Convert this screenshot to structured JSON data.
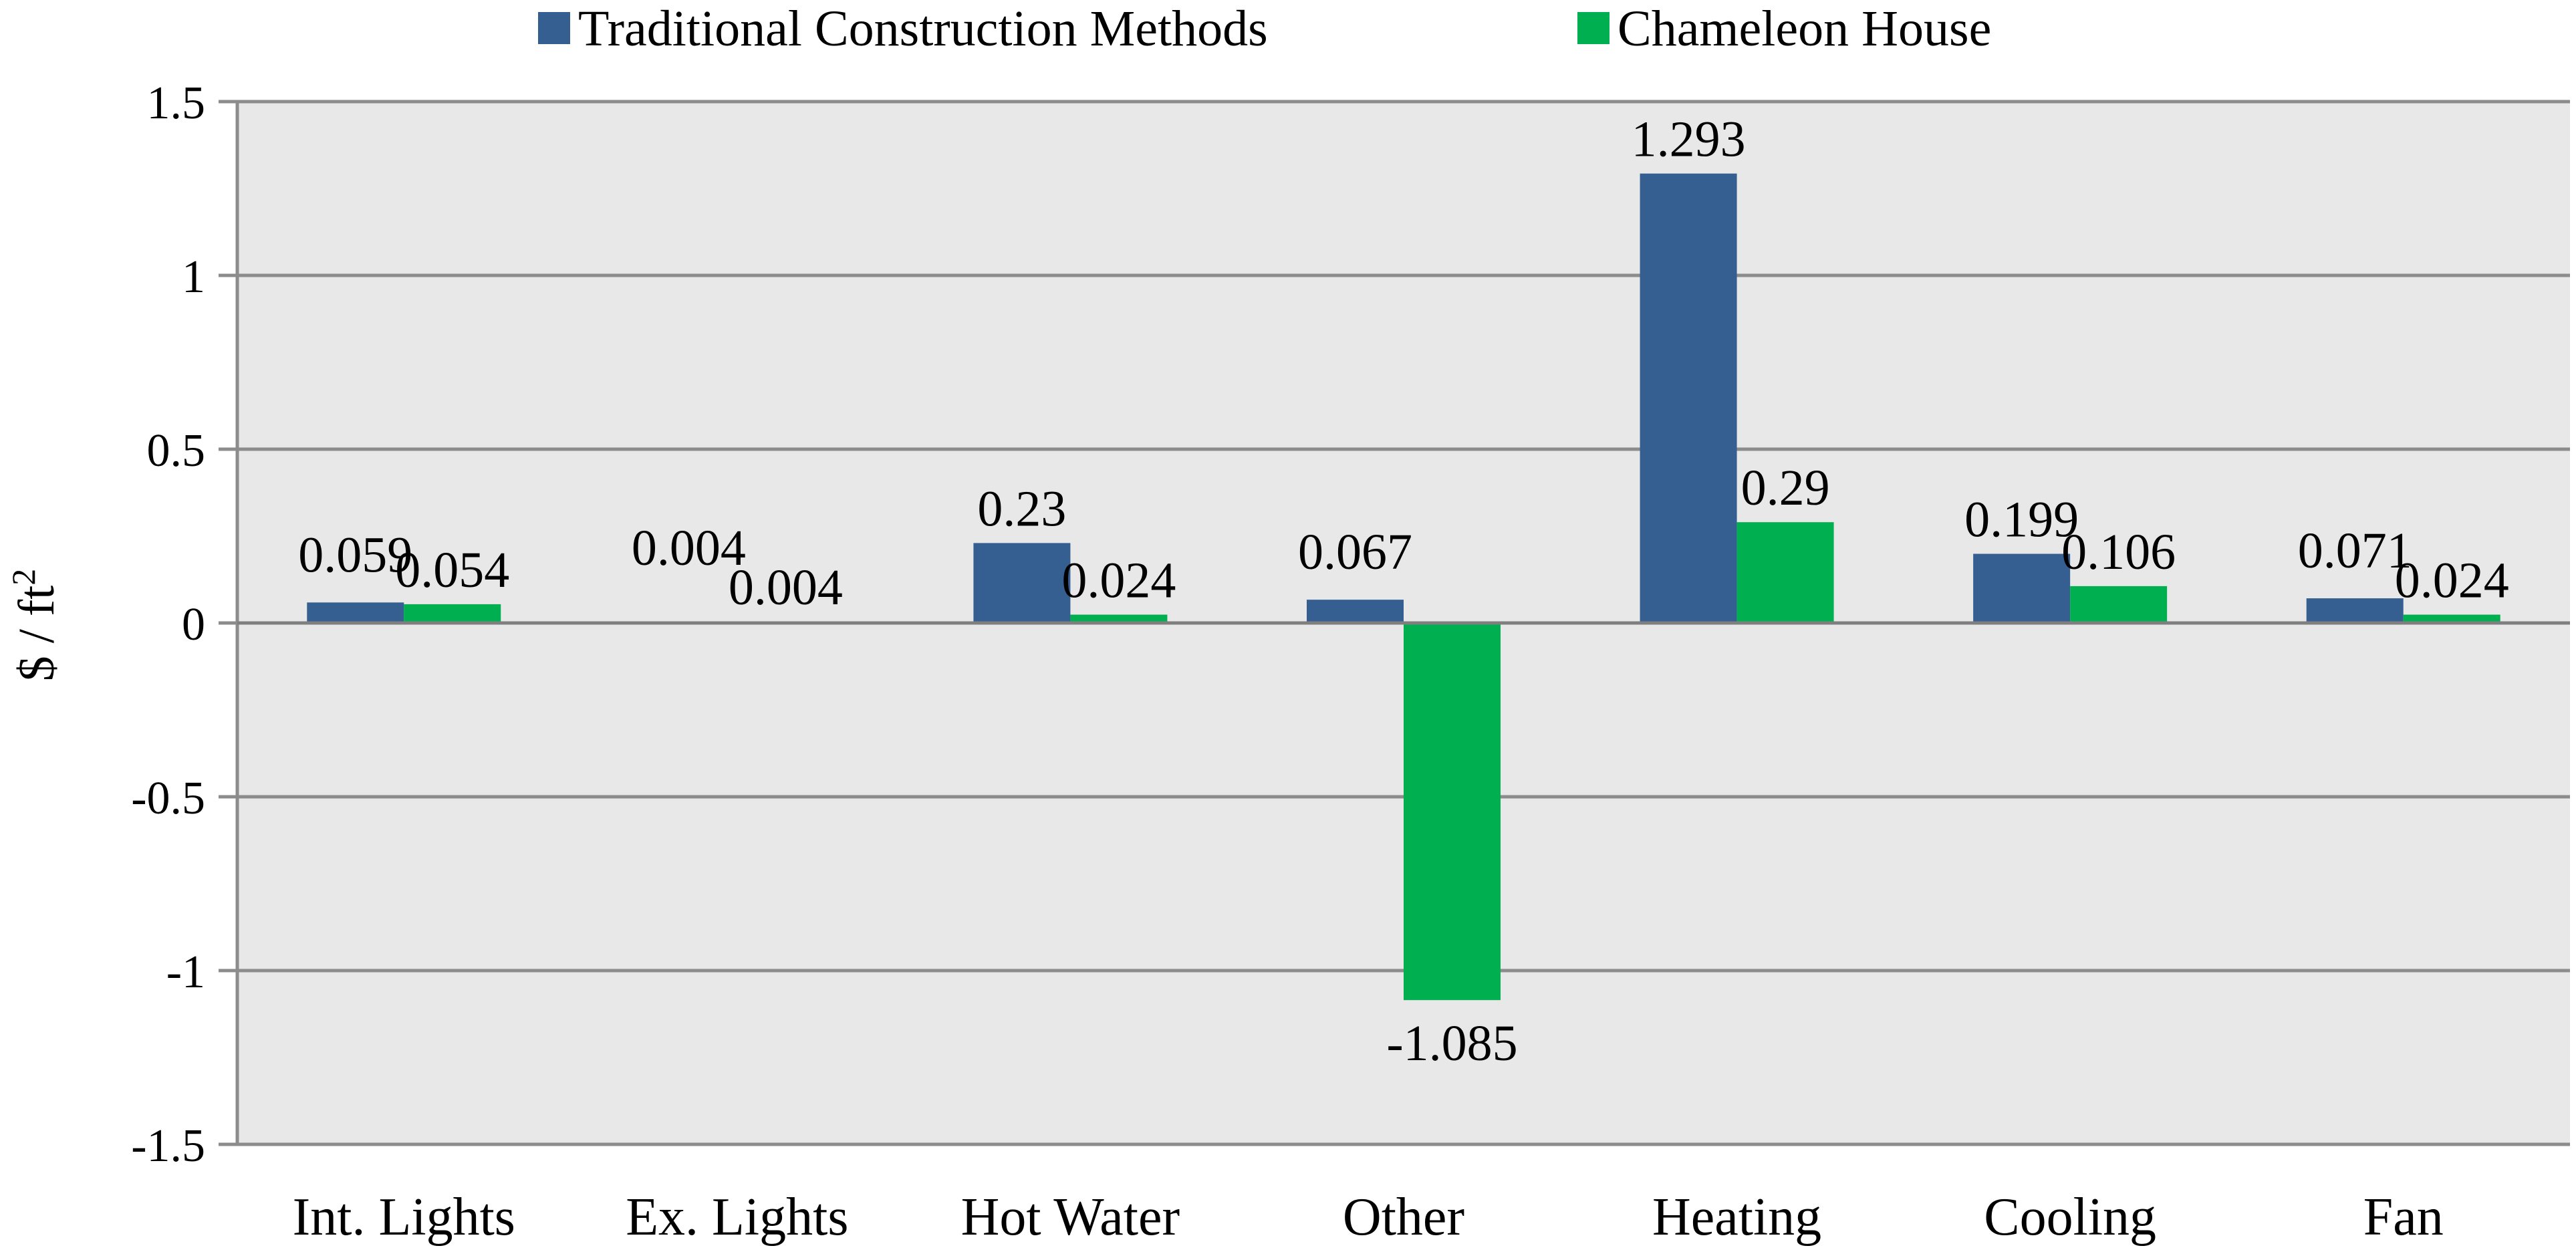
{
  "chart_data": {
    "type": "bar",
    "title": "",
    "xlabel": "",
    "ylabel": "$ / ft",
    "ylabel_superscript": "2",
    "categories": [
      "Int. Lights",
      "Ex. Lights",
      "Hot Water",
      "Other",
      "Heating",
      "Cooling",
      "Fan"
    ],
    "series": [
      {
        "name": "Traditional Construction Methods",
        "color": "#355E91",
        "values": [
          0.059,
          0.004,
          0.23,
          0.067,
          1.293,
          0.199,
          0.071
        ],
        "labels": [
          "0.059",
          "0.004",
          "0.23",
          "0.067",
          "1.293",
          "0.199",
          "0.071"
        ]
      },
      {
        "name": "Chameleon House",
        "color": "#00B050",
        "values": [
          0.054,
          0.004,
          0.024,
          -1.085,
          0.29,
          0.106,
          0.024
        ],
        "labels": [
          "0.054",
          "0.004",
          "0.024",
          "-1.085",
          "0.29",
          "0.106",
          "0.024"
        ]
      }
    ],
    "ylim": [
      -1.5,
      1.5
    ],
    "yticks": [
      1.5,
      1,
      0.5,
      0,
      -0.5,
      -1,
      -1.5
    ],
    "ytick_labels": [
      "1.5",
      "1",
      "0.5",
      "0",
      "-0.5",
      "-1",
      "-1.5"
    ],
    "grid": true,
    "legend_position": "top",
    "plot_background": "#E8E8E8",
    "gridline_color": "#8C8C8C"
  }
}
